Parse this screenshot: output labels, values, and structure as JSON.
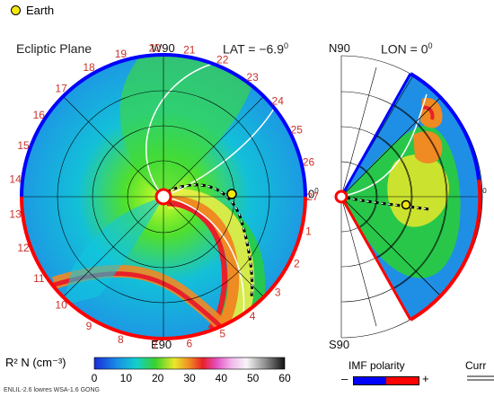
{
  "legend": {
    "earth_label": "Earth",
    "earth_color": "#f2e70f"
  },
  "panels": {
    "ecliptic_title": "Ecliptic Plane",
    "lat_readout": "LAT = −6.9",
    "lat_sup": "0",
    "lon_readout": "LON = 0",
    "lon_sup": "0",
    "top_dir": "W90",
    "bottom_dir": "E90",
    "right_dir": "0",
    "right_sup": "0",
    "meridional_top": "N90",
    "meridional_bottom": "S90",
    "meridional_right": "0",
    "meridional_right_sup": "0"
  },
  "colorbar": {
    "title": "R² N (cm⁻³)",
    "ticks": [
      "0",
      "10",
      "20",
      "30",
      "40",
      "50",
      "60"
    ]
  },
  "imf": {
    "title": "IMF polarity",
    "minus": "–",
    "plus": "+",
    "neg_color": "#0000ff",
    "pos_color": "#ff0000"
  },
  "current_label": "Curr",
  "footer": "ENLIL-2.6 lowres WSA-1.6 GONG",
  "chart_data": {
    "type": "polar-heatmap",
    "quantity": "R² N (cm⁻³)",
    "range": [
      0,
      60
    ],
    "carrington_ticks": [
      "1",
      "2",
      "3",
      "4",
      "5",
      "6",
      "7",
      "8",
      "9",
      "10",
      "11",
      "12",
      "13",
      "14",
      "15",
      "16",
      "17",
      "18",
      "19",
      "20",
      "21",
      "22",
      "23",
      "24",
      "25",
      "26",
      "27"
    ]
  }
}
